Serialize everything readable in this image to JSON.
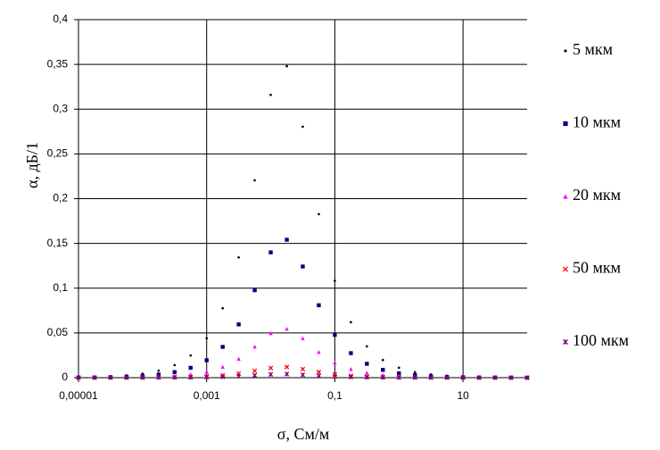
{
  "chart_data": {
    "type": "scatter",
    "xlabel": "σ, См/м",
    "ylabel": "α, дБ/1",
    "xscale": "log",
    "grid": true,
    "legend": "right",
    "x": [
      1e-05,
      1.78e-05,
      3.16e-05,
      5.62e-05,
      0.0001,
      0.000178,
      0.000316,
      0.000562,
      0.001,
      0.00178,
      0.00316,
      0.00562,
      0.01,
      0.0178,
      0.0316,
      0.0562,
      0.1,
      0.178,
      0.316,
      0.562,
      1,
      1.78,
      3.16,
      5.62,
      10,
      17.8,
      31.6,
      56.2,
      100
    ],
    "series": [
      {
        "name": "5 мкм",
        "color": "#000000",
        "marker": "circle",
        "values": [
          0.0004,
          0.0008,
          0.0014,
          0.0025,
          0.0044,
          0.0078,
          0.014,
          0.0248,
          0.044,
          0.0776,
          0.1344,
          0.2205,
          0.316,
          0.348,
          0.2804,
          0.1827,
          0.1082,
          0.062,
          0.035,
          0.0197,
          0.0111,
          0.0062,
          0.0035,
          0.002,
          0.0011,
          0.0006,
          0.0004,
          0.0002,
          0.0001
        ]
      },
      {
        "name": "10 мкм",
        "color": "#000080",
        "marker": "square",
        "values": [
          0.0002,
          0.0003,
          0.0006,
          0.0011,
          0.002,
          0.0035,
          0.0062,
          0.011,
          0.0195,
          0.0344,
          0.0595,
          0.0977,
          0.14,
          0.1541,
          0.1242,
          0.0809,
          0.0479,
          0.0274,
          0.0155,
          0.0087,
          0.0049,
          0.0028,
          0.0016,
          0.0009,
          0.0005,
          0.0003,
          0.0002,
          0.0001,
          0
        ]
      },
      {
        "name": "20 мкм",
        "color": "#ff00ff",
        "marker": "triangle",
        "values": [
          0.0001,
          0.0001,
          0.0002,
          0.0004,
          0.0007,
          0.0012,
          0.0022,
          0.0039,
          0.0069,
          0.0122,
          0.0211,
          0.0347,
          0.0497,
          0.0547,
          0.0441,
          0.0287,
          0.017,
          0.0097,
          0.0055,
          0.0031,
          0.0017,
          0.001,
          0.0006,
          0.0003,
          0.0002,
          0.0001,
          0.0001,
          0,
          0
        ]
      },
      {
        "name": "50 мкм",
        "color": "#ff0000",
        "marker": "x",
        "values": [
          0,
          0,
          0,
          0.0001,
          0.0002,
          0.0003,
          0.0005,
          0.0008,
          0.0015,
          0.0027,
          0.0046,
          0.0076,
          0.0108,
          0.0119,
          0.0096,
          0.0063,
          0.0037,
          0.0021,
          0.0012,
          0.0007,
          0.0004,
          0.0002,
          0.0001,
          0.0001,
          0,
          0,
          0,
          0,
          0
        ]
      },
      {
        "name": "100 мкм",
        "color": "#800080",
        "marker": "star",
        "values": [
          0,
          0,
          0,
          0,
          0,
          0.0001,
          0.0002,
          0.0003,
          0.0005,
          0.0009,
          0.0015,
          0.0025,
          0.0036,
          0.004,
          0.0032,
          0.0021,
          0.0012,
          0.0007,
          0.0004,
          0.0002,
          0.0001,
          0.0001,
          0,
          0,
          0,
          0,
          0,
          0,
          0
        ]
      }
    ],
    "xlim": [
      1e-05,
      100
    ],
    "xticks": [
      {
        "value": 1e-05,
        "label": "0,00001"
      },
      {
        "value": 0.001,
        "label": "0,001"
      },
      {
        "value": 0.1,
        "label": "0,1"
      },
      10
    ],
    "ylim": [
      0,
      0.4
    ],
    "yticks": [
      0,
      {
        "value": 0.05,
        "label": "0,05"
      },
      {
        "value": 0.1,
        "label": "0,1"
      },
      {
        "value": 0.15,
        "label": "0,15"
      },
      {
        "value": 0.2,
        "label": "0,2"
      },
      {
        "value": 0.25,
        "label": "0,25"
      },
      {
        "value": 0.3,
        "label": "0,3"
      },
      {
        "value": 0.35,
        "label": "0,35"
      },
      {
        "value": 0.4,
        "label": "0,4"
      }
    ]
  }
}
